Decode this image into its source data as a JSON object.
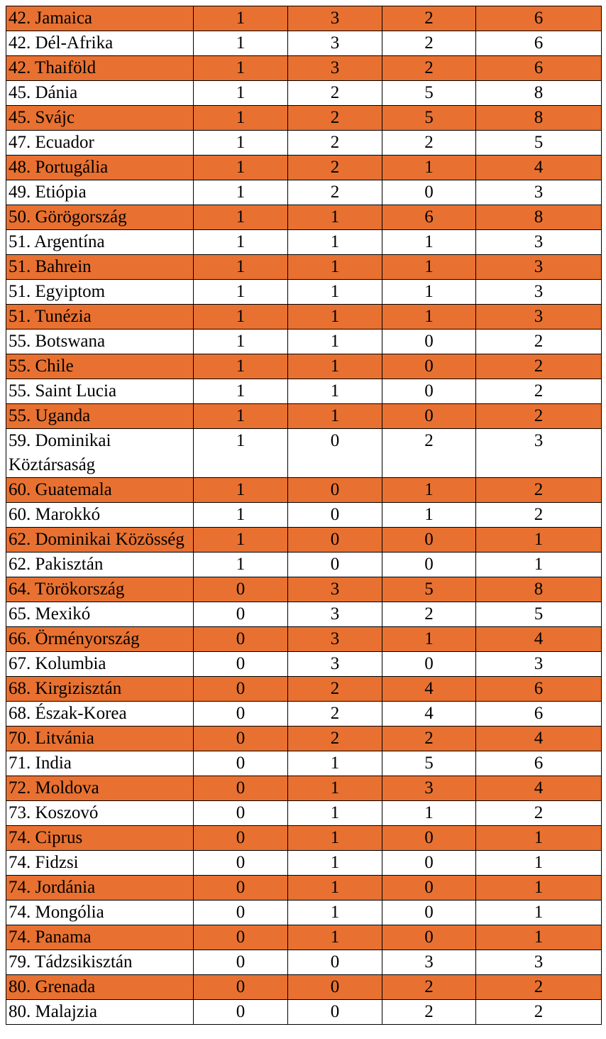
{
  "row_shading_color": "#e87131",
  "rows": [
    {
      "rank_country": "42. Jamaica",
      "gold": "1",
      "silver": "3",
      "bronze": "2",
      "total": "6",
      "shaded": true
    },
    {
      "rank_country": "42. Dél-Afrika",
      "gold": "1",
      "silver": "3",
      "bronze": "2",
      "total": "6",
      "shaded": false
    },
    {
      "rank_country": "42. Thaiföld",
      "gold": "1",
      "silver": "3",
      "bronze": "2",
      "total": "6",
      "shaded": true
    },
    {
      "rank_country": "45. Dánia",
      "gold": "1",
      "silver": "2",
      "bronze": "5",
      "total": "8",
      "shaded": false
    },
    {
      "rank_country": "45. Svájc",
      "gold": "1",
      "silver": "2",
      "bronze": "5",
      "total": "8",
      "shaded": true
    },
    {
      "rank_country": "47. Ecuador",
      "gold": "1",
      "silver": "2",
      "bronze": "2",
      "total": "5",
      "shaded": false
    },
    {
      "rank_country": "48. Portugália",
      "gold": "1",
      "silver": "2",
      "bronze": "1",
      "total": "4",
      "shaded": true
    },
    {
      "rank_country": "49. Etiópia",
      "gold": "1",
      "silver": "2",
      "bronze": "0",
      "total": "3",
      "shaded": false
    },
    {
      "rank_country": "50. Görögország",
      "gold": "1",
      "silver": "1",
      "bronze": "6",
      "total": "8",
      "shaded": true
    },
    {
      "rank_country": "51. Argentína",
      "gold": "1",
      "silver": "1",
      "bronze": "1",
      "total": "3",
      "shaded": false
    },
    {
      "rank_country": "51. Bahrein",
      "gold": "1",
      "silver": "1",
      "bronze": "1",
      "total": "3",
      "shaded": true
    },
    {
      "rank_country": "51. Egyiptom",
      "gold": "1",
      "silver": "1",
      "bronze": "1",
      "total": "3",
      "shaded": false
    },
    {
      "rank_country": "51. Tunézia",
      "gold": "1",
      "silver": "1",
      "bronze": "1",
      "total": "3",
      "shaded": true
    },
    {
      "rank_country": "55. Botswana",
      "gold": "1",
      "silver": "1",
      "bronze": "0",
      "total": "2",
      "shaded": false
    },
    {
      "rank_country": "55. Chile",
      "gold": "1",
      "silver": "1",
      "bronze": "0",
      "total": "2",
      "shaded": true
    },
    {
      "rank_country": "55. Saint Lucia",
      "gold": "1",
      "silver": "1",
      "bronze": "0",
      "total": "2",
      "shaded": false
    },
    {
      "rank_country": "55. Uganda",
      "gold": "1",
      "silver": "1",
      "bronze": "0",
      "total": "2",
      "shaded": true
    },
    {
      "rank_country": "59. Dominikai Köztársaság",
      "gold": "1",
      "silver": "0",
      "bronze": "2",
      "total": "3",
      "shaded": false
    },
    {
      "rank_country": "60. Guatemala",
      "gold": "1",
      "silver": "0",
      "bronze": "1",
      "total": "2",
      "shaded": true
    },
    {
      "rank_country": "60. Marokkó",
      "gold": "1",
      "silver": "0",
      "bronze": "1",
      "total": "2",
      "shaded": false
    },
    {
      "rank_country": "62. Dominikai Közösség",
      "gold": "1",
      "silver": "0",
      "bronze": "0",
      "total": "1",
      "shaded": true
    },
    {
      "rank_country": "62. Pakisztán",
      "gold": "1",
      "silver": "0",
      "bronze": "0",
      "total": "1",
      "shaded": false
    },
    {
      "rank_country": "64. Törökország",
      "gold": "0",
      "silver": "3",
      "bronze": "5",
      "total": "8",
      "shaded": true
    },
    {
      "rank_country": "65. Mexikó",
      "gold": "0",
      "silver": "3",
      "bronze": "2",
      "total": "5",
      "shaded": false
    },
    {
      "rank_country": "66. Örményország",
      "gold": "0",
      "silver": "3",
      "bronze": "1",
      "total": "4",
      "shaded": true
    },
    {
      "rank_country": "67. Kolumbia",
      "gold": "0",
      "silver": "3",
      "bronze": "0",
      "total": "3",
      "shaded": false
    },
    {
      "rank_country": "68. Kirgizisztán",
      "gold": "0",
      "silver": "2",
      "bronze": "4",
      "total": "6",
      "shaded": true
    },
    {
      "rank_country": "68. Észak-Korea",
      "gold": "0",
      "silver": "2",
      "bronze": "4",
      "total": "6",
      "shaded": false
    },
    {
      "rank_country": "70. Litvánia",
      "gold": "0",
      "silver": "2",
      "bronze": "2",
      "total": "4",
      "shaded": true
    },
    {
      "rank_country": "71. India",
      "gold": "0",
      "silver": "1",
      "bronze": "5",
      "total": "6",
      "shaded": false
    },
    {
      "rank_country": "72. Moldova",
      "gold": "0",
      "silver": "1",
      "bronze": "3",
      "total": "4",
      "shaded": true
    },
    {
      "rank_country": "73. Koszovó",
      "gold": "0",
      "silver": "1",
      "bronze": "1",
      "total": "2",
      "shaded": false
    },
    {
      "rank_country": "74. Ciprus",
      "gold": "0",
      "silver": "1",
      "bronze": "0",
      "total": "1",
      "shaded": true
    },
    {
      "rank_country": "74. Fidzsi",
      "gold": "0",
      "silver": "1",
      "bronze": "0",
      "total": "1",
      "shaded": false
    },
    {
      "rank_country": "74. Jordánia",
      "gold": "0",
      "silver": "1",
      "bronze": "0",
      "total": "1",
      "shaded": true
    },
    {
      "rank_country": "74. Mongólia",
      "gold": "0",
      "silver": "1",
      "bronze": "0",
      "total": "1",
      "shaded": false
    },
    {
      "rank_country": "74. Panama",
      "gold": "0",
      "silver": "1",
      "bronze": "0",
      "total": "1",
      "shaded": true
    },
    {
      "rank_country": "79. Tádzsikisztán",
      "gold": "0",
      "silver": "0",
      "bronze": "3",
      "total": "3",
      "shaded": false
    },
    {
      "rank_country": "80. Grenada",
      "gold": "0",
      "silver": "0",
      "bronze": "2",
      "total": "2",
      "shaded": true
    },
    {
      "rank_country": "80. Malajzia",
      "gold": "0",
      "silver": "0",
      "bronze": "2",
      "total": "2",
      "shaded": false
    }
  ]
}
